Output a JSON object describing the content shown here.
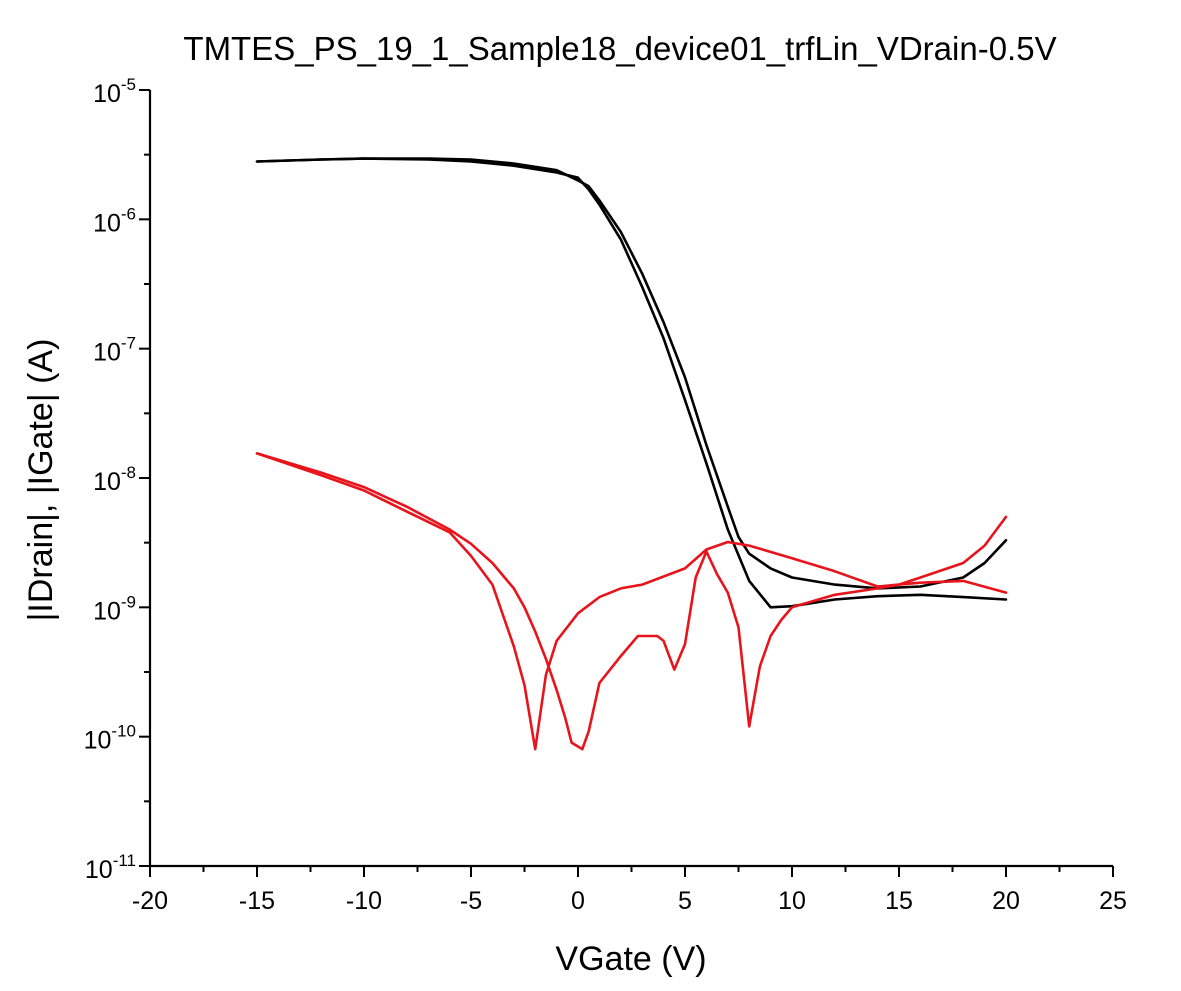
{
  "chart_data": {
    "type": "line",
    "title": "TMTES_PS_19_1_Sample18_device01_trfLin_VDrain-0.5V",
    "xlabel": "VGate (V)",
    "ylabel": "|IDrain|, |IGate| (A)",
    "xlim": [
      -20,
      25
    ],
    "ylim": [
      1e-11,
      1e-05
    ],
    "yscale": "log",
    "x_ticks": [
      {
        "value": -20,
        "label": "-20"
      },
      {
        "value": -15,
        "label": "-15"
      },
      {
        "value": -10,
        "label": "-10"
      },
      {
        "value": -5,
        "label": "-5"
      },
      {
        "value": 0,
        "label": "0"
      },
      {
        "value": 5,
        "label": "5"
      },
      {
        "value": 10,
        "label": "10"
      },
      {
        "value": 15,
        "label": "15"
      },
      {
        "value": 20,
        "label": "20"
      },
      {
        "value": 25,
        "label": "25"
      }
    ],
    "y_ticks": [
      {
        "value": 1e-05,
        "base": "10",
        "exp": "-5"
      },
      {
        "value": 1e-06,
        "base": "10",
        "exp": "-6"
      },
      {
        "value": 1e-07,
        "base": "10",
        "exp": "-7"
      },
      {
        "value": 1e-08,
        "base": "10",
        "exp": "-8"
      },
      {
        "value": 1e-09,
        "base": "10",
        "exp": "-9"
      },
      {
        "value": 1e-10,
        "base": "10",
        "exp": "-10"
      },
      {
        "value": 1e-11,
        "base": "10",
        "exp": "-11"
      }
    ],
    "grid": false,
    "legend": "none",
    "series": [
      {
        "color": "#000000",
        "points": [
          [
            -15,
            2.8e-06
          ],
          [
            -12,
            2.9e-06
          ],
          [
            -10,
            2.95e-06
          ],
          [
            -7,
            2.9e-06
          ],
          [
            -5,
            2.8e-06
          ],
          [
            -3,
            2.6e-06
          ],
          [
            -1,
            2.3e-06
          ],
          [
            0,
            2.1e-06
          ],
          [
            0.5,
            1.7e-06
          ],
          [
            1,
            1.3e-06
          ],
          [
            2,
            7e-07
          ],
          [
            3,
            3e-07
          ],
          [
            4,
            1.2e-07
          ],
          [
            5,
            4e-08
          ],
          [
            6,
            1.3e-08
          ],
          [
            7,
            4e-09
          ],
          [
            8,
            1.6e-09
          ],
          [
            9,
            1e-09
          ],
          [
            10,
            1.02e-09
          ],
          [
            12,
            1.15e-09
          ],
          [
            14,
            1.22e-09
          ],
          [
            16,
            1.25e-09
          ],
          [
            18,
            1.2e-09
          ],
          [
            20,
            1.15e-09
          ]
        ]
      },
      {
        "color": "#000000",
        "points": [
          [
            20,
            3.3e-09
          ],
          [
            19,
            2.2e-09
          ],
          [
            18,
            1.7e-09
          ],
          [
            16,
            1.45e-09
          ],
          [
            14,
            1.4e-09
          ],
          [
            12,
            1.5e-09
          ],
          [
            10,
            1.7e-09
          ],
          [
            9,
            2e-09
          ],
          [
            8,
            2.6e-09
          ],
          [
            7.5,
            3.5e-09
          ],
          [
            7,
            6e-09
          ],
          [
            6,
            1.8e-08
          ],
          [
            5,
            6e-08
          ],
          [
            4,
            1.6e-07
          ],
          [
            3,
            3.8e-07
          ],
          [
            2,
            8e-07
          ],
          [
            1,
            1.4e-06
          ],
          [
            0.5,
            1.8e-06
          ],
          [
            0,
            2e-06
          ],
          [
            -1,
            2.4e-06
          ],
          [
            -3,
            2.7e-06
          ],
          [
            -5,
            2.9e-06
          ],
          [
            -7,
            2.95e-06
          ],
          [
            -10,
            2.95e-06
          ],
          [
            -12,
            2.9e-06
          ],
          [
            -15,
            2.8e-06
          ]
        ]
      },
      {
        "color": "#e8141c",
        "points": [
          [
            -15,
            1.55e-08
          ],
          [
            -12,
            1.1e-08
          ],
          [
            -10,
            8.5e-09
          ],
          [
            -8,
            6e-09
          ],
          [
            -6,
            4e-09
          ],
          [
            -5,
            3.1e-09
          ],
          [
            -4,
            2.2e-09
          ],
          [
            -3,
            1.4e-09
          ],
          [
            -2.5,
            1e-09
          ],
          [
            -2,
            6.5e-10
          ],
          [
            -1.5,
            4e-10
          ],
          [
            -1,
            2.3e-10
          ],
          [
            -0.6,
            1.4e-10
          ],
          [
            -0.3,
            9e-11
          ],
          [
            0.2,
            8e-11
          ],
          [
            0.5,
            1.1e-10
          ],
          [
            1,
            2.6e-10
          ],
          [
            2,
            4.2e-10
          ],
          [
            2.8,
            6e-10
          ],
          [
            3.7,
            6e-10
          ],
          [
            4,
            5.5e-10
          ],
          [
            4.5,
            3.3e-10
          ],
          [
            5,
            5.2e-10
          ],
          [
            5.5,
            1.7e-09
          ],
          [
            6,
            2.7e-09
          ],
          [
            6.5,
            1.8e-09
          ],
          [
            7,
            1.3e-09
          ],
          [
            7.5,
            7e-10
          ],
          [
            8,
            1.2e-10
          ],
          [
            8.5,
            3.5e-10
          ],
          [
            9,
            6e-10
          ],
          [
            9.5,
            8e-10
          ],
          [
            10,
            1e-09
          ],
          [
            12,
            1.25e-09
          ],
          [
            14,
            1.4e-09
          ],
          [
            15,
            1.5e-09
          ],
          [
            16,
            1.55e-09
          ],
          [
            18,
            1.6e-09
          ],
          [
            20,
            1.3e-09
          ]
        ]
      },
      {
        "color": "#e8141c",
        "points": [
          [
            20,
            5e-09
          ],
          [
            19,
            3e-09
          ],
          [
            18,
            2.2e-09
          ],
          [
            16,
            1.7e-09
          ],
          [
            15,
            1.5e-09
          ],
          [
            14,
            1.45e-09
          ],
          [
            12,
            1.9e-09
          ],
          [
            10,
            2.4e-09
          ],
          [
            8,
            3e-09
          ],
          [
            7,
            3.2e-09
          ],
          [
            6,
            2.8e-09
          ],
          [
            5,
            2e-09
          ],
          [
            3,
            1.5e-09
          ],
          [
            2,
            1.4e-09
          ],
          [
            1,
            1.2e-09
          ],
          [
            0,
            9e-10
          ],
          [
            -1,
            5.5e-10
          ],
          [
            -1.5,
            3e-10
          ],
          [
            -2,
            8e-11
          ],
          [
            -2.5,
            2.5e-10
          ],
          [
            -3,
            5e-10
          ],
          [
            -4,
            1.5e-09
          ],
          [
            -5,
            2.5e-09
          ],
          [
            -6,
            3.8e-09
          ],
          [
            -8,
            5.5e-09
          ],
          [
            -10,
            8e-09
          ],
          [
            -12,
            1.05e-08
          ],
          [
            -15,
            1.55e-08
          ]
        ]
      }
    ]
  }
}
